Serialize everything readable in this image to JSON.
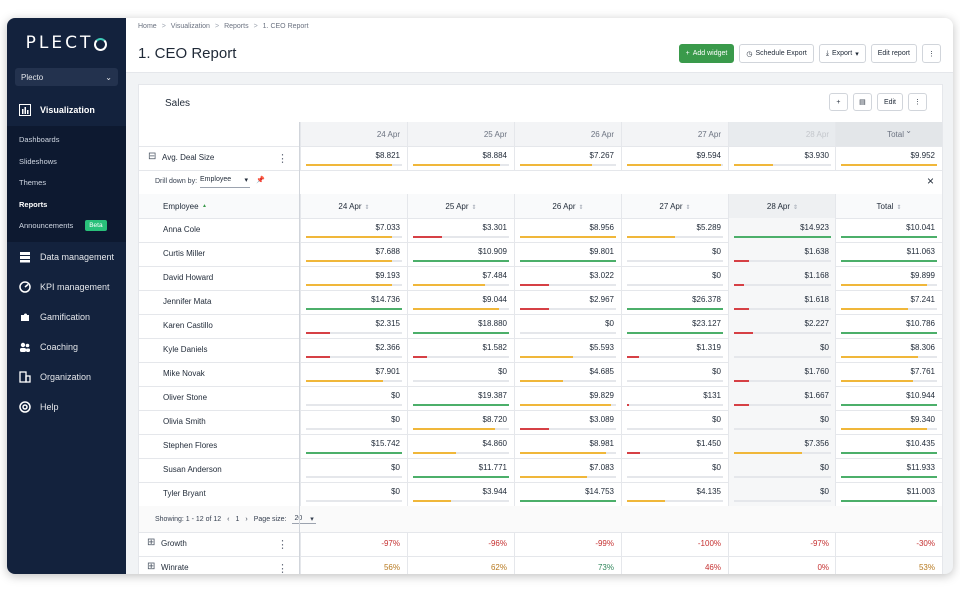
{
  "app": {
    "logo_text": "PLECT",
    "org": "Plecto"
  },
  "sidebar": {
    "active": "Visualization",
    "sub_items": [
      {
        "label": "Dashboards",
        "active": false
      },
      {
        "label": "Slideshows",
        "active": false
      },
      {
        "label": "Themes",
        "active": false
      },
      {
        "label": "Reports",
        "active": true
      },
      {
        "label": "Announcements",
        "active": false,
        "badge": "Beta"
      }
    ],
    "items": [
      "Data management",
      "KPI management",
      "Gamification",
      "Coaching",
      "Organization",
      "Help"
    ]
  },
  "breadcrumb": [
    "Home",
    "Visualization",
    "Reports",
    "1. CEO Report"
  ],
  "page": {
    "title": "1. CEO Report"
  },
  "actions": {
    "add_widget": "Add widget",
    "schedule_export": "Schedule Export",
    "export": "Export",
    "edit_report": "Edit report"
  },
  "widget": {
    "title": "Sales",
    "edit": "Edit",
    "dates": [
      "24 Apr",
      "25 Apr",
      "26 Apr",
      "27 Apr",
      "28 Apr"
    ],
    "total_label": "Total",
    "avg_deal": {
      "label": "Avg. Deal Size",
      "values": [
        "$8.821",
        "$8.884",
        "$7.267",
        "$9.594",
        "$3.930",
        "$9.952"
      ],
      "fills": [
        0.9,
        0.91,
        0.75,
        0.98,
        0.4,
        1.0
      ]
    },
    "drill": {
      "label": "Drill down by:",
      "value": "Employee"
    },
    "employee_header": "Employee",
    "employees": [
      {
        "name": "Anna Cole",
        "values": [
          "$7.033",
          "$3.301",
          "$8.956",
          "$5.289",
          "$14.923",
          "$10.041"
        ],
        "fills": [
          0.9,
          0.3,
          1.0,
          0.5,
          1.0,
          1.0
        ],
        "colors": [
          "amber",
          "red",
          "amber",
          "amber",
          "green",
          "green"
        ]
      },
      {
        "name": "Curtis Miller",
        "values": [
          "$7.688",
          "$10.909",
          "$9.801",
          "$0",
          "$1.638",
          "$11.063"
        ],
        "fills": [
          0.9,
          1.0,
          1.0,
          0,
          0.15,
          1.0
        ],
        "colors": [
          "amber",
          "green",
          "green",
          "red",
          "red",
          "green"
        ]
      },
      {
        "name": "David Howard",
        "values": [
          "$9.193",
          "$7.484",
          "$3.022",
          "$0",
          "$1.168",
          "$9.899"
        ],
        "fills": [
          0.9,
          0.75,
          0.3,
          0,
          0.1,
          0.9
        ],
        "colors": [
          "amber",
          "amber",
          "red",
          "red",
          "red",
          "amber"
        ]
      },
      {
        "name": "Jennifer Mata",
        "values": [
          "$14.736",
          "$9.044",
          "$2.967",
          "$26.378",
          "$1.618",
          "$7.241"
        ],
        "fills": [
          1.0,
          0.9,
          0.3,
          1.0,
          0.15,
          0.7
        ],
        "colors": [
          "green",
          "amber",
          "red",
          "green",
          "red",
          "amber"
        ]
      },
      {
        "name": "Karen Castillo",
        "values": [
          "$2.315",
          "$18.880",
          "$0",
          "$23.127",
          "$2.227",
          "$10.786"
        ],
        "fills": [
          0.25,
          1.0,
          0,
          1.0,
          0.2,
          1.0
        ],
        "colors": [
          "red",
          "green",
          "red",
          "green",
          "red",
          "green"
        ]
      },
      {
        "name": "Kyle Daniels",
        "values": [
          "$2.366",
          "$1.582",
          "$5.593",
          "$1.319",
          "$0",
          "$8.306"
        ],
        "fills": [
          0.25,
          0.15,
          0.55,
          0.13,
          0,
          0.8
        ],
        "colors": [
          "red",
          "red",
          "amber",
          "red",
          "red",
          "amber"
        ]
      },
      {
        "name": "Mike Novak",
        "values": [
          "$7.901",
          "$0",
          "$4.685",
          "$0",
          "$1.760",
          "$7.761"
        ],
        "fills": [
          0.8,
          0,
          0.45,
          0,
          0.15,
          0.75
        ],
        "colors": [
          "amber",
          "red",
          "amber",
          "red",
          "red",
          "amber"
        ]
      },
      {
        "name": "Oliver Stone",
        "values": [
          "$0",
          "$19.387",
          "$9.829",
          "$131",
          "$1.667",
          "$10.944"
        ],
        "fills": [
          0,
          1.0,
          0.95,
          0.02,
          0.15,
          1.0
        ],
        "colors": [
          "red",
          "green",
          "amber",
          "red",
          "red",
          "green"
        ]
      },
      {
        "name": "Olivia Smith",
        "values": [
          "$0",
          "$8.720",
          "$3.089",
          "$0",
          "$0",
          "$9.340"
        ],
        "fills": [
          0,
          0.85,
          0.3,
          0,
          0,
          0.9
        ],
        "colors": [
          "red",
          "amber",
          "red",
          "red",
          "red",
          "amber"
        ]
      },
      {
        "name": "Stephen Flores",
        "values": [
          "$15.742",
          "$4.860",
          "$8.981",
          "$1.450",
          "$7.356",
          "$10.435"
        ],
        "fills": [
          1.0,
          0.45,
          0.9,
          0.14,
          0.7,
          1.0
        ],
        "colors": [
          "green",
          "amber",
          "amber",
          "red",
          "amber",
          "green"
        ]
      },
      {
        "name": "Susan Anderson",
        "values": [
          "$0",
          "$11.771",
          "$7.083",
          "$0",
          "$0",
          "$11.933"
        ],
        "fills": [
          0,
          1.0,
          0.7,
          0,
          0,
          1.0
        ],
        "colors": [
          "red",
          "green",
          "amber",
          "red",
          "red",
          "green"
        ]
      },
      {
        "name": "Tyler Bryant",
        "values": [
          "$0",
          "$3.944",
          "$14.753",
          "$4.135",
          "$0",
          "$11.003"
        ],
        "fills": [
          0,
          0.4,
          1.0,
          0.4,
          0,
          1.0
        ],
        "colors": [
          "red",
          "amber",
          "green",
          "amber",
          "red",
          "green"
        ]
      }
    ],
    "pager": {
      "showing": "Showing: 1 - 12 of 12",
      "page": "1",
      "page_size_label": "Page size:",
      "page_size": "20"
    },
    "growth": {
      "label": "Growth",
      "values": [
        "-97%",
        "-96%",
        "-99%",
        "-100%",
        "-97%",
        "-30%"
      ]
    },
    "winrate": {
      "label": "Winrate",
      "values": [
        "56%",
        "62%",
        "73%",
        "46%",
        "0%",
        "53%"
      ],
      "colors": [
        "#b7791f",
        "#b7791f",
        "#2f855a",
        "#c53030",
        "#c53030",
        "#b7791f"
      ]
    }
  },
  "colors": {
    "green": "#4caf6a",
    "amber": "#f0b73a",
    "red": "#d64045",
    "sidebar": "#13223d",
    "primary": "#3a9a4b"
  }
}
